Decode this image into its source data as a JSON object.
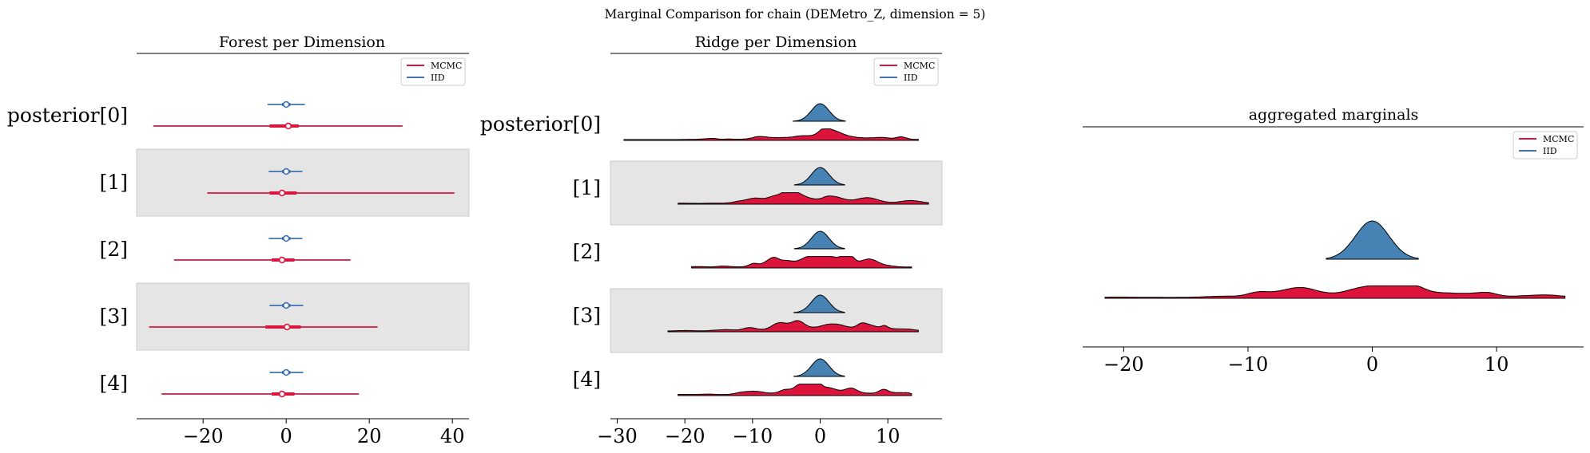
{
  "suptitle": "Marginal Comparison for chain (DEMetro_Z, dimension = 5)",
  "colors": {
    "mcmc": "#dc143c",
    "iid": "#3f72af",
    "iid_fill": "#4682b4",
    "band": "#e5e5e5",
    "axis": "#000000"
  },
  "legend": {
    "mcmc": "MCMC",
    "iid": "IID"
  },
  "chart_data": [
    {
      "type": "forest",
      "title": "Forest per Dimension",
      "xlim": [
        -36,
        44
      ],
      "xticks": [
        -20,
        0,
        20,
        40
      ],
      "xtick_labels": [
        "−20",
        "0",
        "20",
        "40"
      ],
      "row_labels": [
        "posterior[0]",
        "[1]",
        "[2]",
        "[3]",
        "[4]"
      ],
      "shaded_rows": [
        1,
        3
      ],
      "legend_position": "top-right",
      "series": [
        {
          "name": "IID",
          "intervals": [
            {
              "low": -4.5,
              "q1": -1,
              "mid": 0,
              "q3": 1,
              "high": 4.5
            },
            {
              "low": -4.2,
              "q1": -1,
              "mid": 0,
              "q3": 1,
              "high": 3.9
            },
            {
              "low": -4.2,
              "q1": -1,
              "mid": 0,
              "q3": 1,
              "high": 3.9
            },
            {
              "low": -4.0,
              "q1": -1,
              "mid": 0,
              "q3": 1,
              "high": 4.1
            },
            {
              "low": -4.0,
              "q1": -1,
              "mid": 0,
              "q3": 1,
              "high": 4.1
            }
          ]
        },
        {
          "name": "MCMC",
          "intervals": [
            {
              "low": -32,
              "q1": -4,
              "mid": 0.5,
              "q3": 3,
              "high": 28
            },
            {
              "low": -19,
              "q1": -4,
              "mid": -1,
              "q3": 2.5,
              "high": 40.5
            },
            {
              "low": -27,
              "q1": -3.5,
              "mid": -1,
              "q3": 2,
              "high": 15.5
            },
            {
              "low": -33,
              "q1": -5,
              "mid": 0.2,
              "q3": 3.5,
              "high": 22
            },
            {
              "low": -30,
              "q1": -3.5,
              "mid": -1,
              "q3": 2,
              "high": 17.5
            }
          ]
        }
      ]
    },
    {
      "type": "ridge",
      "title": "Ridge per Dimension",
      "xlim": [
        -31,
        18
      ],
      "xticks": [
        -30,
        -20,
        -10,
        0,
        10
      ],
      "xtick_labels": [
        "−30",
        "−20",
        "−10",
        "0",
        "10"
      ],
      "row_labels": [
        "posterior[0]",
        "[1]",
        "[2]",
        "[3]",
        "[4]"
      ],
      "shaded_rows": [
        1,
        3
      ],
      "legend_position": "top-right",
      "iid_range": [
        [
          -4,
          3.7
        ],
        [
          -3.8,
          3.6
        ],
        [
          -3.8,
          3.6
        ],
        [
          -3.9,
          3.6
        ],
        [
          -3.9,
          3.6
        ]
      ],
      "mcmc_range": [
        [
          -29,
          14.5
        ],
        [
          -21,
          16
        ],
        [
          -19,
          13.5
        ],
        [
          -22.5,
          14.5
        ],
        [
          -21,
          13.5
        ]
      ]
    },
    {
      "type": "density",
      "title": "aggregated marginals",
      "xlim": [
        -23.3,
        17
      ],
      "xticks": [
        -20,
        -10,
        0,
        10
      ],
      "xtick_labels": [
        "−20",
        "−10",
        "0",
        "10"
      ],
      "legend_position": "top-right",
      "iid_range": [
        -3.7,
        3.7
      ],
      "mcmc_range": [
        -21.5,
        15.5
      ]
    }
  ]
}
